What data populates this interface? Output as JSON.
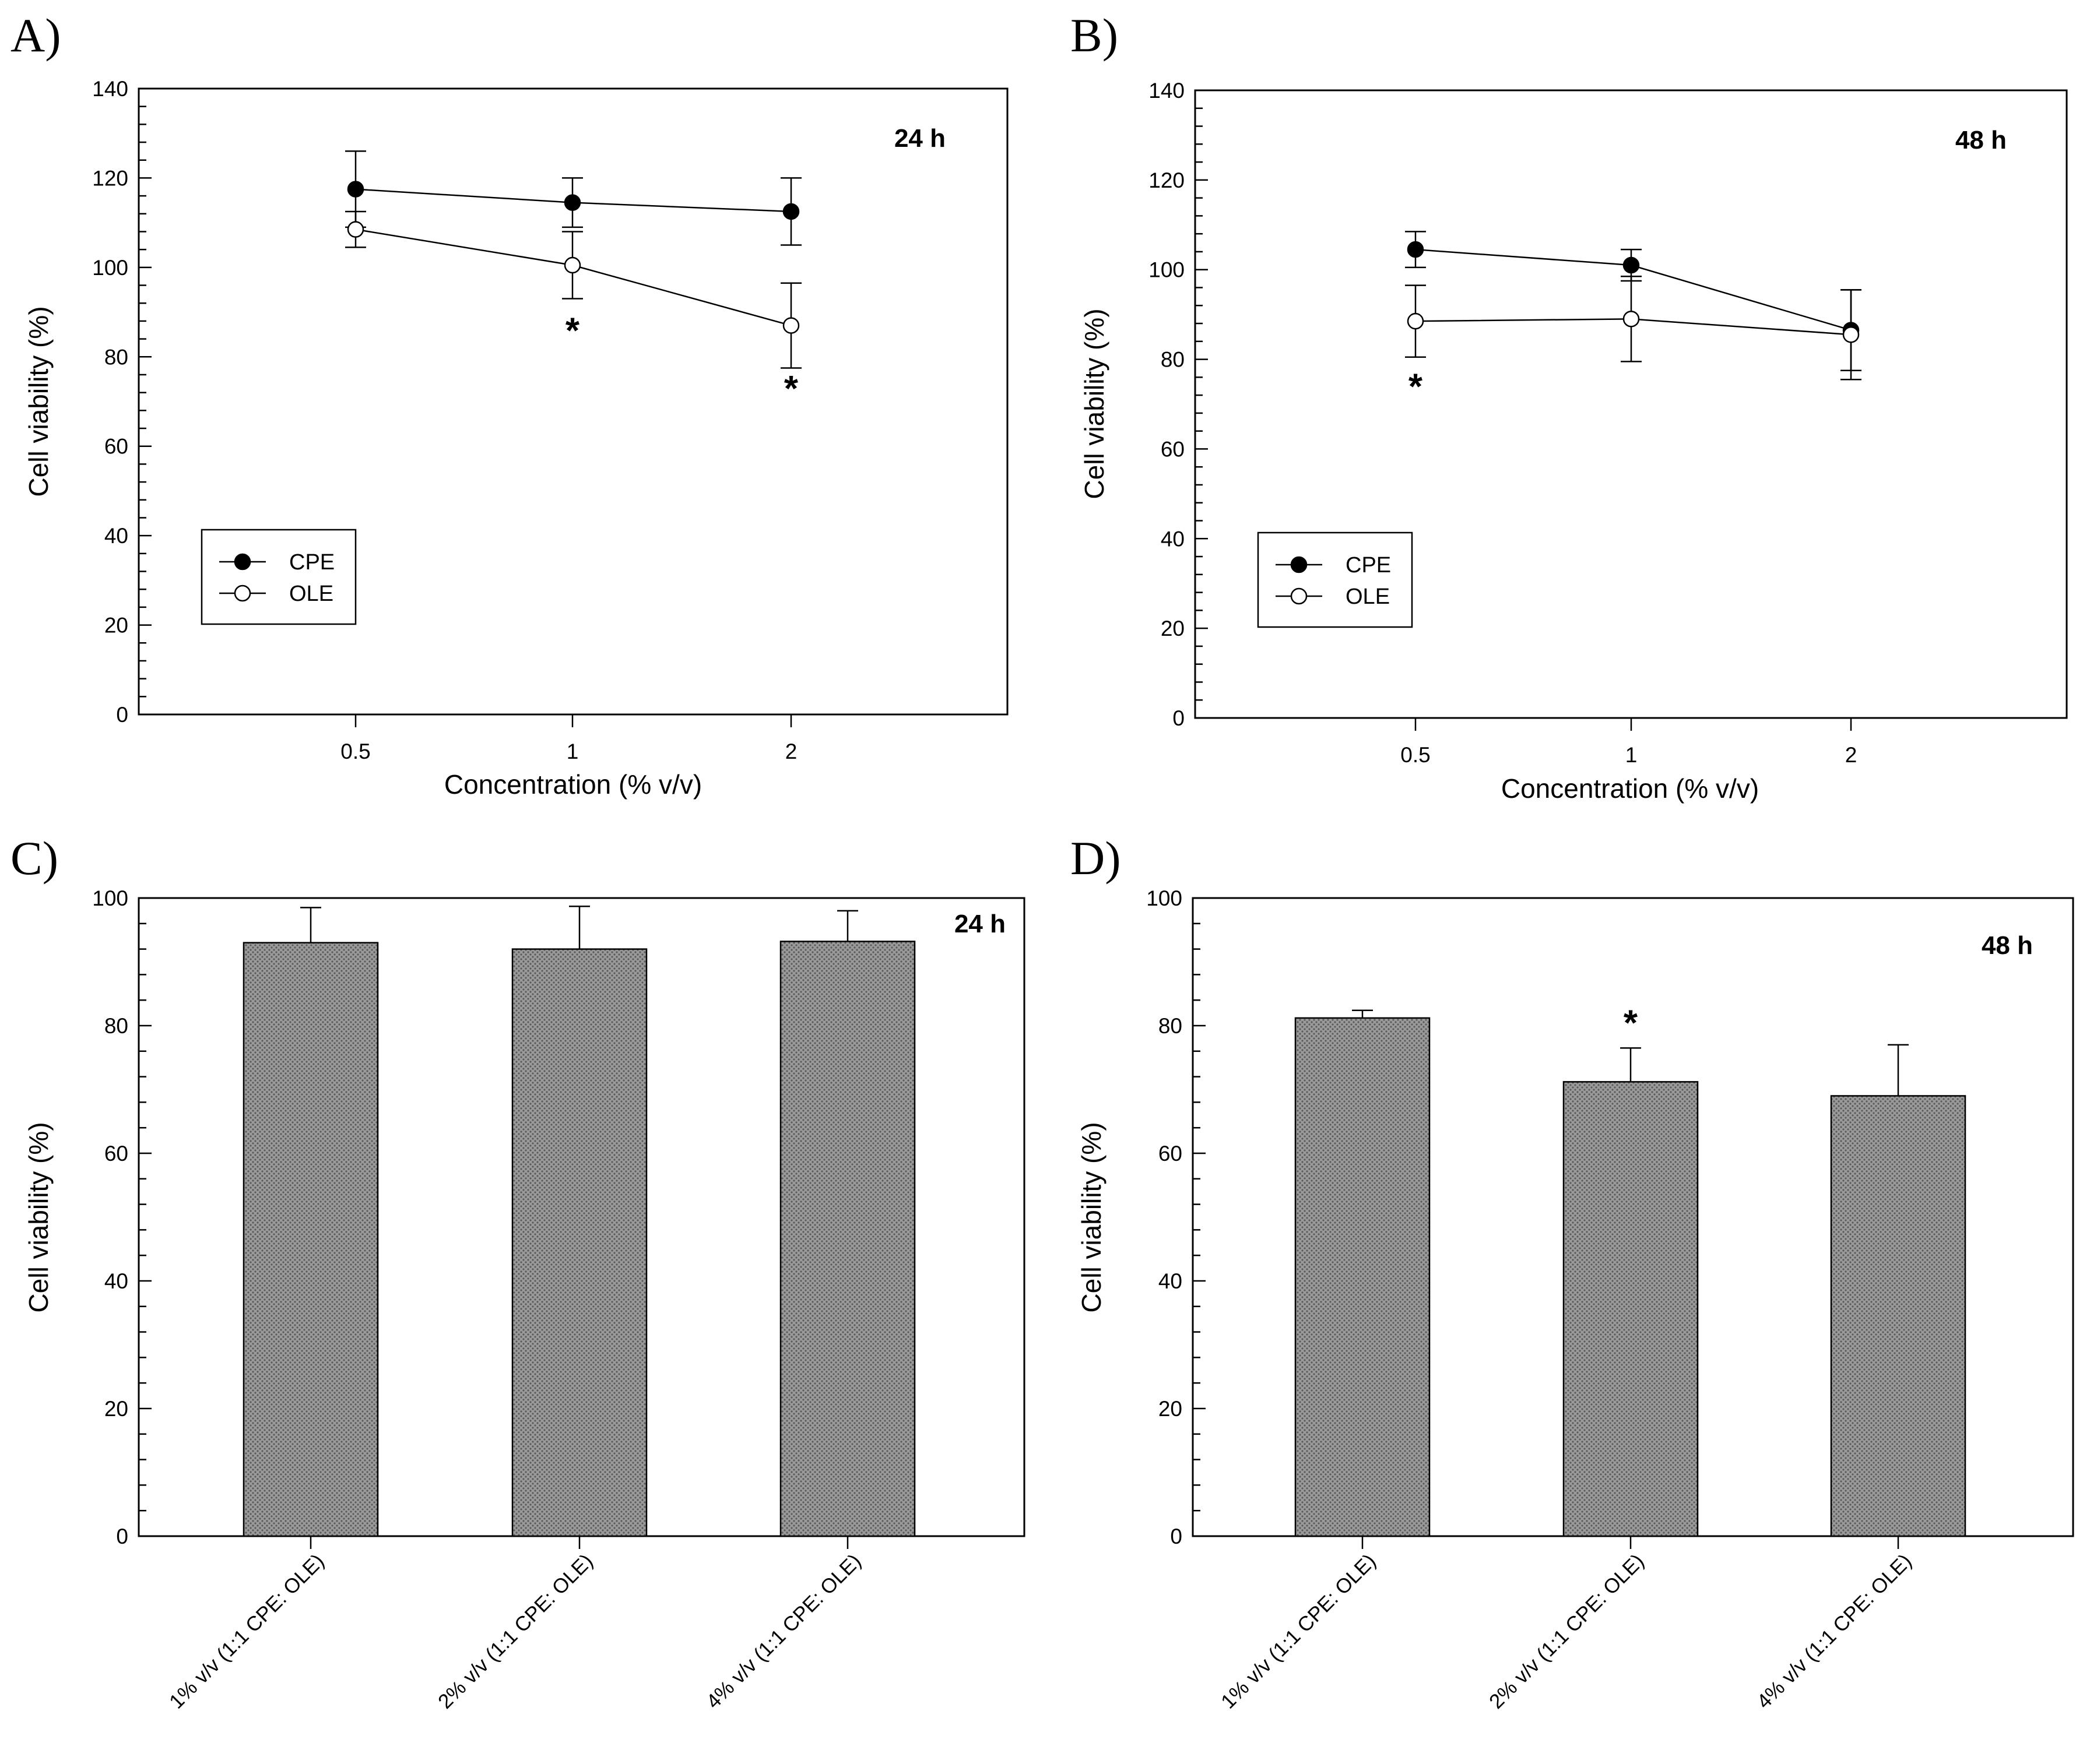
{
  "colors": {
    "bar_fill": "#9a9a9a",
    "bar_pattern_dot": "#5a5a5a",
    "cpe_marker": "#000000",
    "ole_marker": "#ffffff",
    "axis": "#000000"
  },
  "chart_data": [
    {
      "panel": "A)",
      "type": "line",
      "time_label": "24 h",
      "xlabel": "Concentration (% v/v)",
      "ylabel": "Cell viability (%)",
      "ylim": [
        0,
        140
      ],
      "yticks": [
        "0",
        "20",
        "40",
        "60",
        "80",
        "100",
        "120",
        "140"
      ],
      "categories": [
        "0.5",
        "1",
        "2"
      ],
      "legend_position": "bottom-left",
      "series": [
        {
          "name": "CPE",
          "marker": "filled-circle",
          "values": [
            117.5,
            114.5,
            112.5
          ],
          "errors": [
            8.5,
            5.5,
            7.5
          ]
        },
        {
          "name": "OLE",
          "marker": "open-circle",
          "values": [
            108.5,
            100.5,
            87
          ],
          "errors": [
            4,
            7.5,
            9.5
          ]
        }
      ],
      "annotations": [
        {
          "text": "*",
          "category": "1",
          "y": 86
        },
        {
          "text": "*",
          "category": "2",
          "y": 73
        }
      ]
    },
    {
      "panel": "B)",
      "type": "line",
      "time_label": "48 h",
      "xlabel": "Concentration (% v/v)",
      "ylabel": "Cell viability (%)",
      "ylim": [
        0,
        140
      ],
      "yticks": [
        "0",
        "20",
        "40",
        "60",
        "80",
        "100",
        "120",
        "140"
      ],
      "categories": [
        "0.5",
        "1",
        "2"
      ],
      "legend_position": "bottom-left",
      "series": [
        {
          "name": "CPE",
          "marker": "filled-circle",
          "values": [
            104.5,
            101,
            86.5
          ],
          "errors": [
            4,
            3.5,
            9
          ]
        },
        {
          "name": "OLE",
          "marker": "open-circle",
          "values": [
            88.5,
            89,
            85.5
          ],
          "errors": [
            8,
            9.5,
            10
          ]
        }
      ],
      "annotations": [
        {
          "text": "*",
          "category": "0.5",
          "y": 74
        }
      ]
    },
    {
      "panel": "C)",
      "type": "bar",
      "time_label": "24 h",
      "xlabel": "",
      "ylabel": "Cell viability (%)",
      "ylim": [
        0,
        100
      ],
      "yticks": [
        "0",
        "20",
        "40",
        "60",
        "80",
        "100"
      ],
      "categories": [
        "1% v/v (1:1 CPE: OLE)",
        "2% v/v (1:1 CPE: OLE)",
        "4% v/v (1:1 CPE: OLE)"
      ],
      "values": [
        93,
        92,
        93.2
      ],
      "errors": [
        5.5,
        6.7,
        4.8
      ],
      "annotations": []
    },
    {
      "panel": "D)",
      "type": "bar",
      "time_label": "48 h",
      "xlabel": "",
      "ylabel": "Cell viability (%)",
      "ylim": [
        0,
        100
      ],
      "yticks": [
        "0",
        "20",
        "40",
        "60",
        "80",
        "100"
      ],
      "categories": [
        "1% v/v (1:1 CPE: OLE)",
        "2% v/v (1:1 CPE: OLE)",
        "4% v/v (1:1 CPE: OLE)"
      ],
      "values": [
        81.2,
        71.2,
        69
      ],
      "errors": [
        1.2,
        5.3,
        8
      ],
      "annotations": [
        {
          "text": "*",
          "category": "2% v/v (1:1 CPE: OLE)",
          "y": 80.5
        }
      ]
    }
  ]
}
